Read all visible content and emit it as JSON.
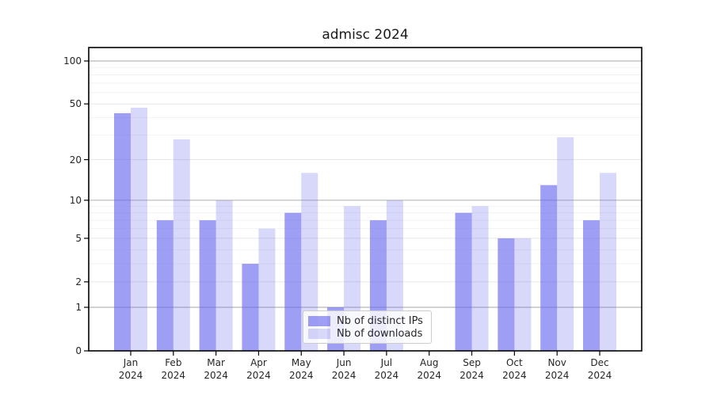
{
  "chart_data": {
    "type": "bar",
    "title": "admisc 2024",
    "categories": [
      "Jan",
      "Feb",
      "Mar",
      "Apr",
      "May",
      "Jun",
      "Jul",
      "Aug",
      "Sep",
      "Oct",
      "Nov",
      "Dec"
    ],
    "year_label": "2024",
    "series": [
      {
        "name": "Nb of distinct IPs",
        "color": "rgba(99,99,237,0.62)",
        "values": [
          43,
          7,
          7,
          3,
          8,
          1,
          7,
          0,
          8,
          5,
          13,
          7
        ]
      },
      {
        "name": "Nb of downloads",
        "color": "rgba(99,99,237,0.25)",
        "values": [
          47,
          28,
          10,
          6,
          16,
          9,
          10,
          0,
          9,
          5,
          29,
          16
        ]
      }
    ],
    "yscale": "log1p",
    "ylim": [
      0,
      124
    ],
    "yticks": [
      0,
      1,
      2,
      5,
      10,
      20,
      50,
      100
    ],
    "ytick_labels": [
      "0",
      "1",
      "2",
      "5",
      "10",
      "20",
      "50",
      "100"
    ],
    "major_gridlines": [
      1,
      10,
      100
    ],
    "mid_gridlines": [
      2,
      5,
      20,
      50
    ],
    "minor_gridlines": [
      3,
      4,
      6,
      7,
      8,
      9,
      30,
      40,
      60,
      70,
      80,
      90
    ],
    "grid": "horizontal",
    "legend_position": "lower center",
    "colors": {
      "background": "#ffffff",
      "axis": "#000000",
      "major_grid": "#b8b8b8",
      "mid_grid": "#e7e7e7",
      "minor_grid": "#f2f2f2",
      "text": "#262626"
    }
  }
}
